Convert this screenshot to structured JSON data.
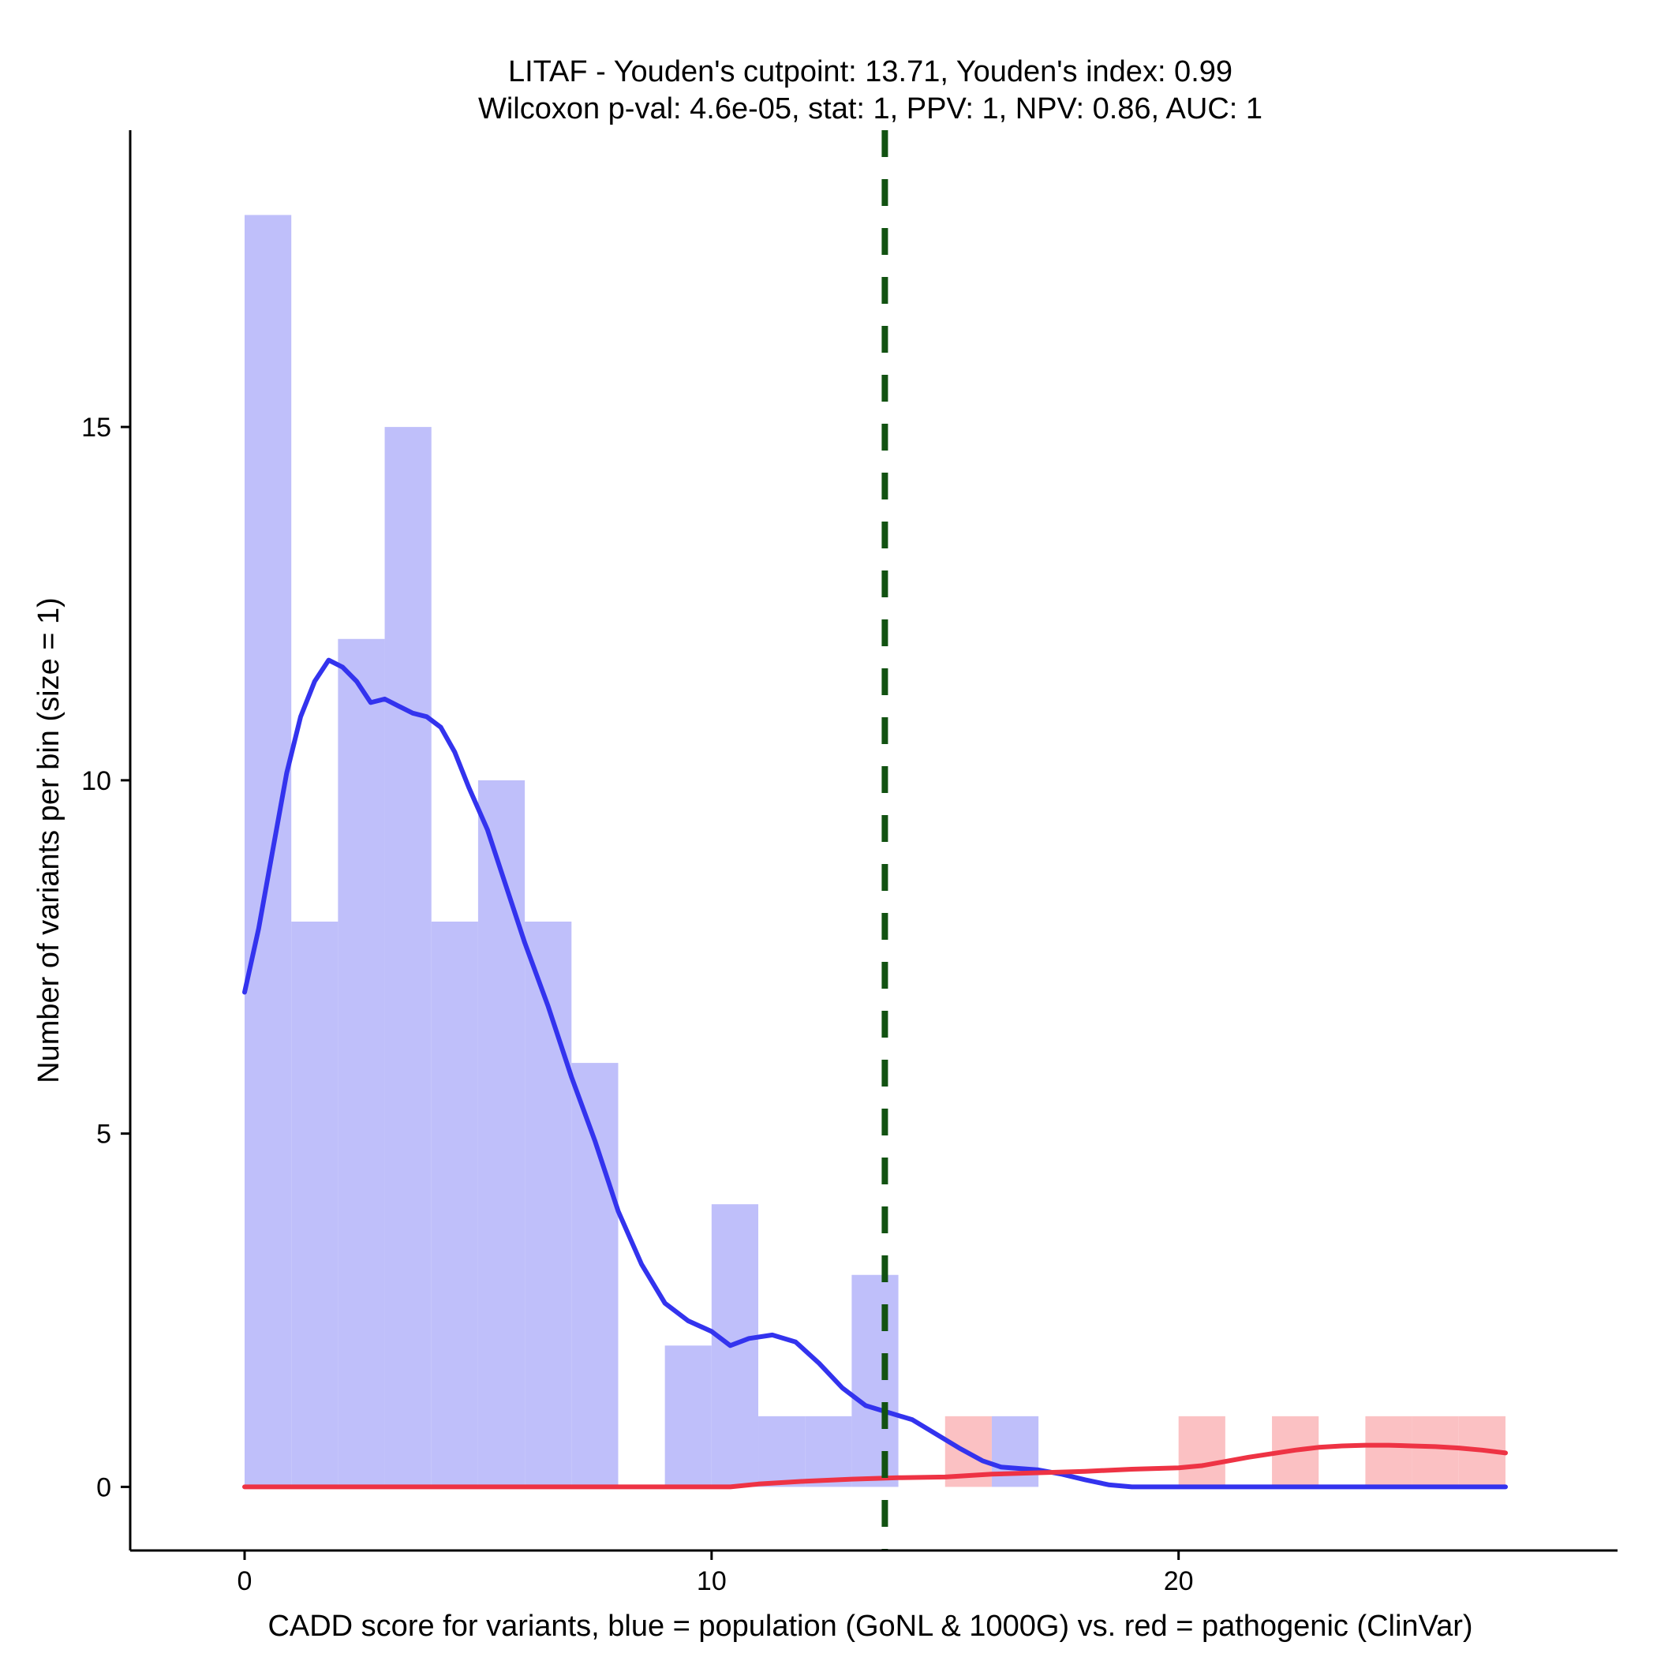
{
  "chart_data": {
    "type": "bar",
    "title": "LITAF - Youden's cutpoint: 13.71, Youden's index: 0.99",
    "subtitle": "Wilcoxon p-val: 4.6e-05, stat: 1, PPV: 1, NPV: 0.86, AUC: 1",
    "xlabel": "CADD score for variants, blue = population (GoNL & 1000G) vs. red = pathogenic (ClinVar)",
    "ylabel": "Number of variants per bin (size = 1)",
    "xlim": [
      -2.45,
      29.4
    ],
    "ylim": [
      -0.9,
      19.2
    ],
    "x_ticks": [
      0,
      10,
      20
    ],
    "y_ticks": [
      0,
      5,
      10,
      15
    ],
    "bin_width": 1,
    "cutpoint": 13.71,
    "colors": {
      "population_bar": "#bfbffa",
      "pathogenic_bar": "#fbc1c3",
      "population_density": "#3333ee",
      "pathogenic_density": "#ee3344",
      "cutpoint_line": "#125212"
    },
    "histogram": {
      "population": [
        {
          "start": 0,
          "count": 18
        },
        {
          "start": 1,
          "count": 8
        },
        {
          "start": 2,
          "count": 12
        },
        {
          "start": 3,
          "count": 15
        },
        {
          "start": 4,
          "count": 8
        },
        {
          "start": 5,
          "count": 10
        },
        {
          "start": 6,
          "count": 8
        },
        {
          "start": 7,
          "count": 6
        },
        {
          "start": 9,
          "count": 2
        },
        {
          "start": 10,
          "count": 4
        },
        {
          "start": 11,
          "count": 1
        },
        {
          "start": 12,
          "count": 1
        },
        {
          "start": 13,
          "count": 3
        },
        {
          "start": 16,
          "count": 1
        }
      ],
      "pathogenic": [
        {
          "start": 15,
          "count": 1
        },
        {
          "start": 20,
          "count": 1
        },
        {
          "start": 22,
          "count": 1
        },
        {
          "start": 24,
          "count": 1
        },
        {
          "start": 25,
          "count": 1
        },
        {
          "start": 26,
          "count": 1
        }
      ]
    },
    "series": [
      {
        "key": "population_density",
        "x": [
          0,
          0.3,
          0.6,
          0.9,
          1.2,
          1.5,
          1.8,
          2.1,
          2.4,
          2.7,
          3.0,
          3.3,
          3.6,
          3.9,
          4.2,
          4.5,
          4.8,
          5.2,
          5.6,
          6.0,
          6.5,
          7.0,
          7.5,
          8.0,
          8.5,
          9.0,
          9.5,
          10.0,
          10.4,
          10.8,
          11.3,
          11.8,
          12.3,
          12.8,
          13.3,
          13.8,
          14.3,
          14.8,
          15.3,
          15.8,
          16.2,
          16.6,
          17.0,
          17.5,
          18.0,
          18.5,
          19.0,
          20,
          22,
          24,
          26,
          27
        ],
        "y": [
          7.0,
          7.9,
          9.0,
          10.1,
          10.9,
          11.4,
          11.7,
          11.6,
          11.4,
          11.1,
          11.15,
          11.05,
          10.95,
          10.9,
          10.75,
          10.4,
          9.9,
          9.3,
          8.5,
          7.7,
          6.8,
          5.8,
          4.9,
          3.9,
          3.15,
          2.6,
          2.35,
          2.2,
          2.0,
          2.1,
          2.15,
          2.05,
          1.75,
          1.4,
          1.15,
          1.05,
          0.95,
          0.75,
          0.55,
          0.37,
          0.28,
          0.26,
          0.24,
          0.18,
          0.1,
          0.03,
          0.0,
          0.0,
          0.0,
          0.0,
          0.0,
          0.0
        ]
      },
      {
        "key": "pathogenic_density",
        "x": [
          0,
          5,
          10,
          10.4,
          11,
          12,
          13,
          14,
          15,
          16,
          17,
          18,
          19,
          20,
          20.5,
          21,
          21.5,
          22,
          22.5,
          23,
          23.5,
          24,
          24.5,
          25,
          25.5,
          26,
          26.5,
          27
        ],
        "y": [
          0.0,
          0.0,
          0.0,
          0.0,
          0.04,
          0.08,
          0.11,
          0.13,
          0.14,
          0.18,
          0.2,
          0.22,
          0.25,
          0.27,
          0.3,
          0.36,
          0.42,
          0.47,
          0.52,
          0.56,
          0.58,
          0.59,
          0.59,
          0.58,
          0.57,
          0.55,
          0.52,
          0.48
        ]
      }
    ]
  }
}
